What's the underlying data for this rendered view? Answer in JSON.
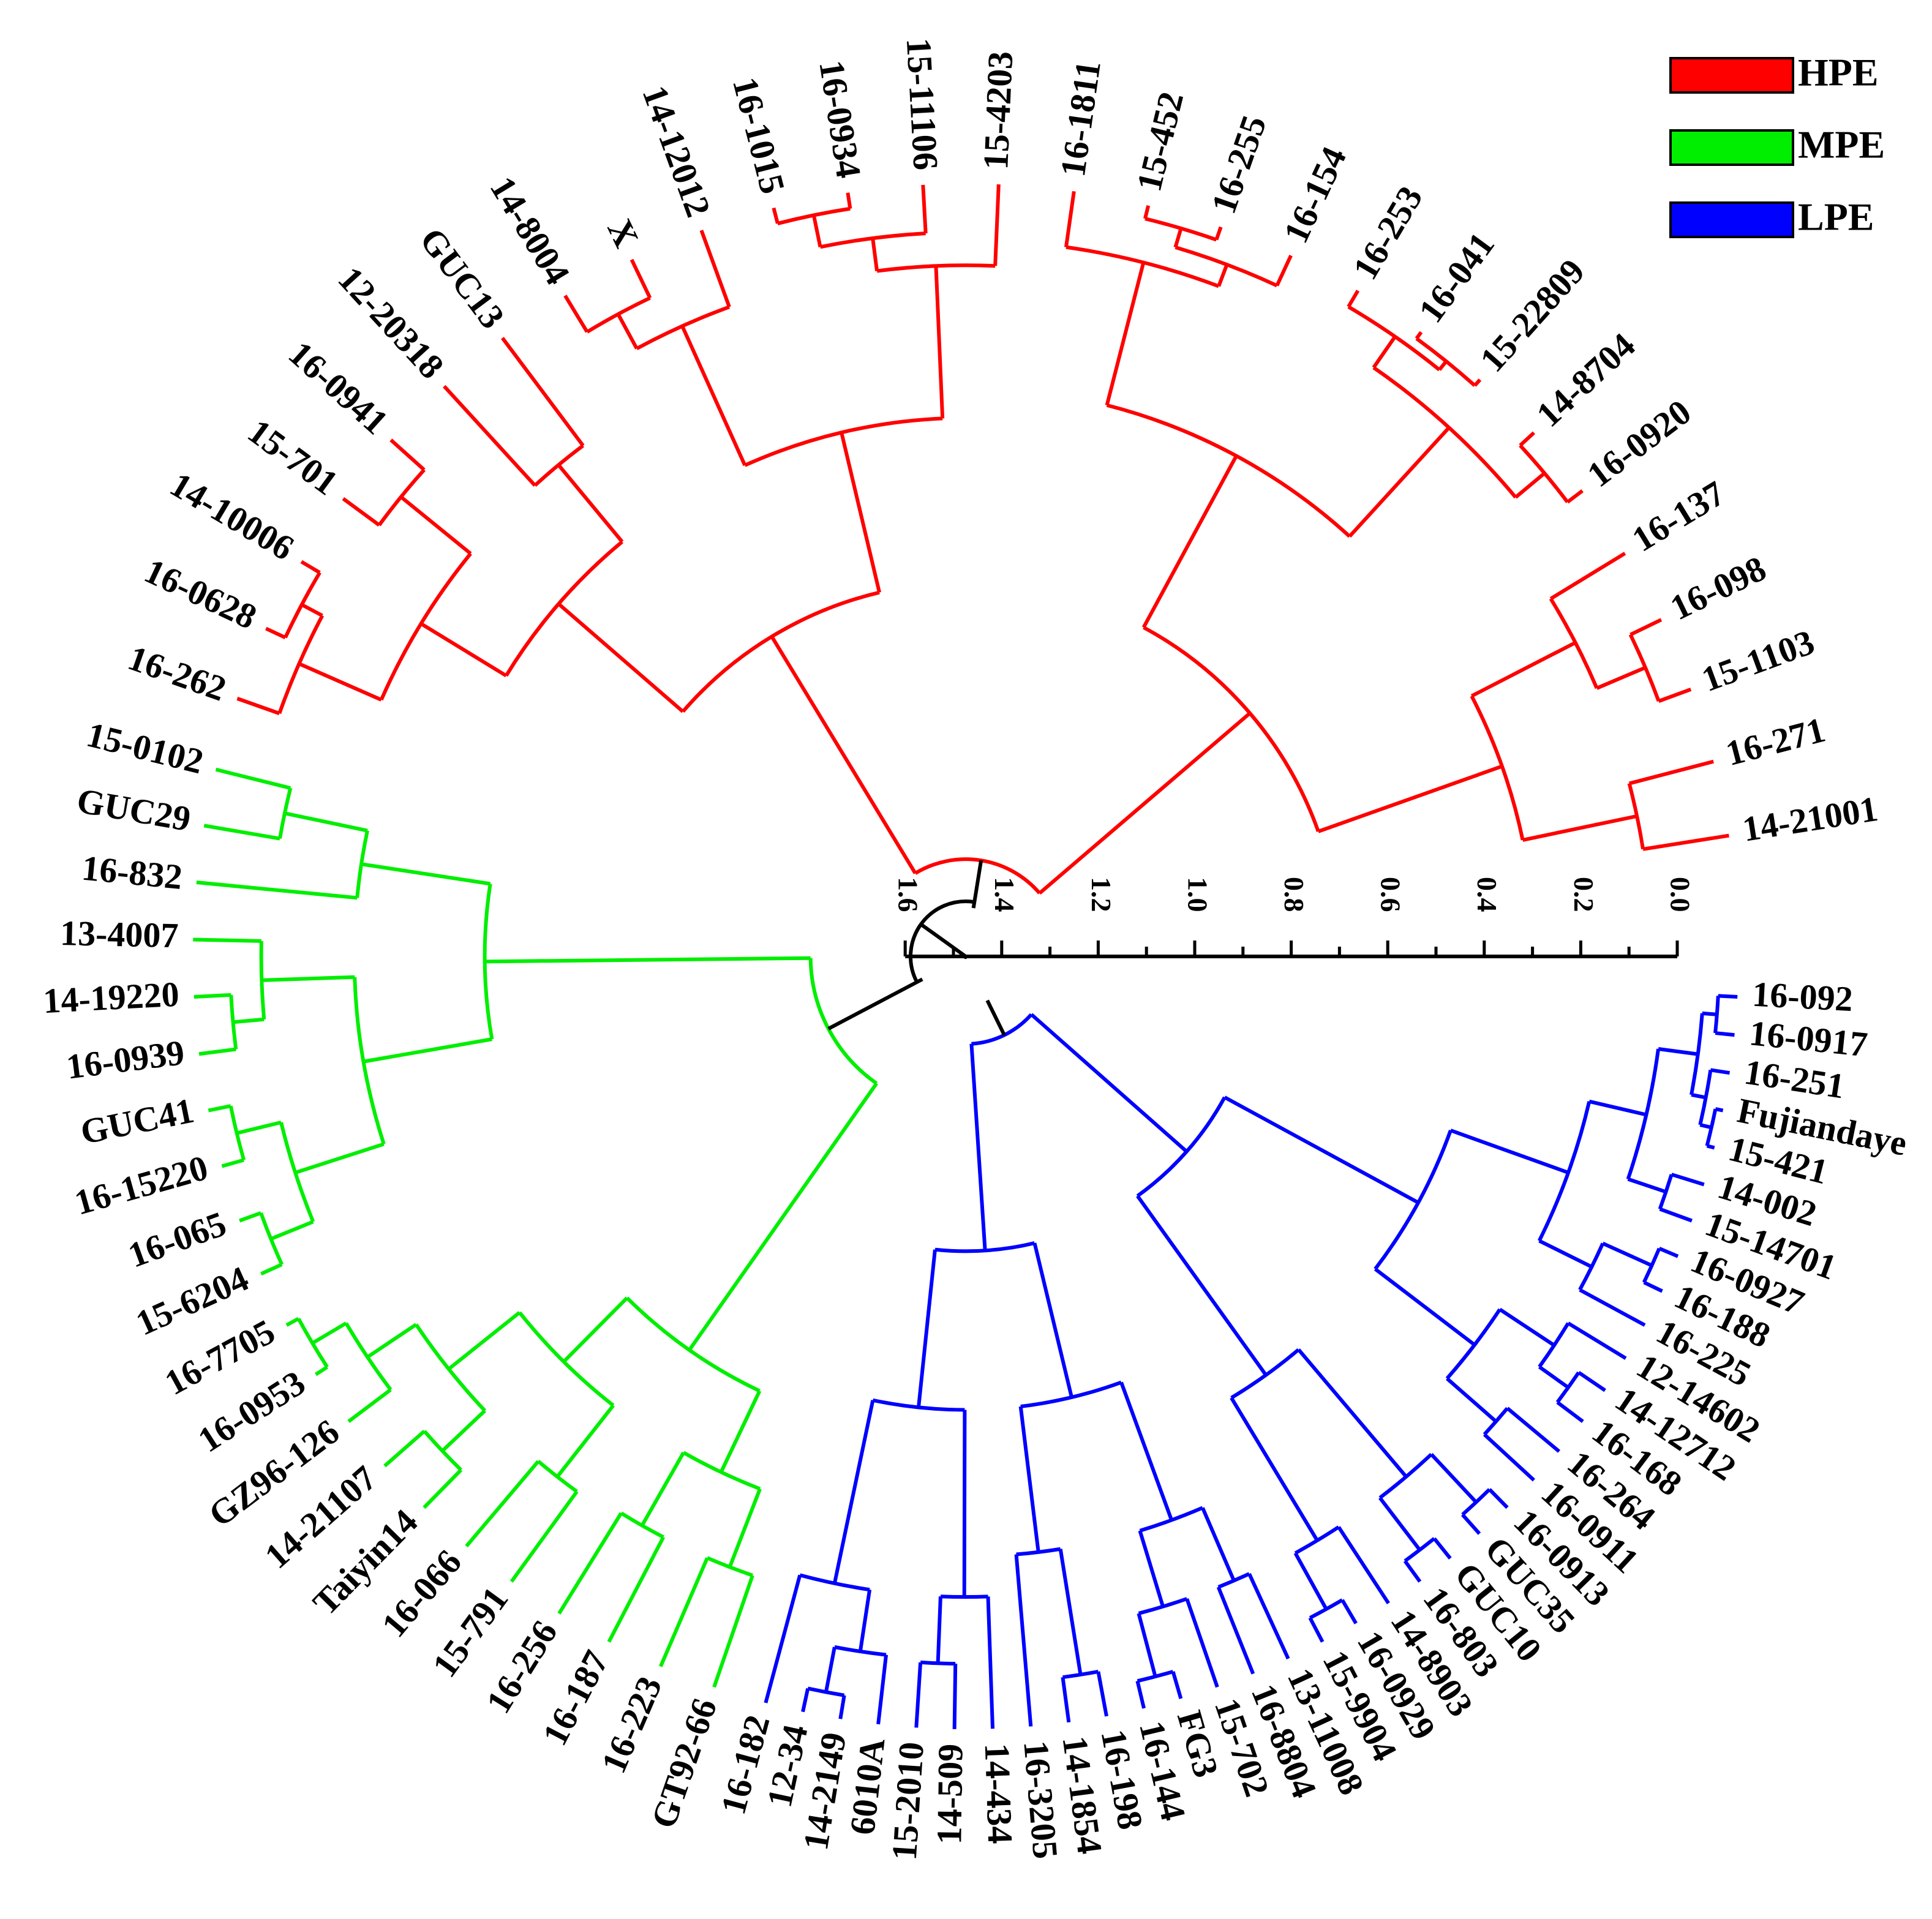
{
  "legend": [
    {
      "label": "HPE",
      "color": "#ff0000"
    },
    {
      "label": "MPE",
      "color": "#00ee00"
    },
    {
      "label": "LPE",
      "color": "#0000ff"
    }
  ],
  "trunk_color": "#000000",
  "axis": {
    "ticks": [
      "0.0",
      "0.2",
      "0.4",
      "0.6",
      "0.8",
      "1.0",
      "1.2",
      "1.4",
      "1.6"
    ],
    "range": [
      0,
      1.6
    ]
  },
  "groups": [
    {
      "name": "HPE",
      "color": "#ff0000",
      "leaves": [
        "14-21001",
        "16-271",
        "15-1103",
        "16-098",
        "16-137",
        "16-0920",
        "14-8704",
        "15-22809",
        "16-041",
        "16-253",
        "16-154",
        "16-255",
        "15-452",
        "16-1811",
        "15-4203",
        "15-11106",
        "16-0934",
        "16-1015",
        "14-12012",
        "X",
        "14-8004",
        "GUC13",
        "12-20318",
        "16-0941",
        "15-701",
        "14-10006",
        "16-0628",
        "16-262"
      ]
    },
    {
      "name": "MPE",
      "color": "#00ee00",
      "leaves": [
        "15-0102",
        "GUC29",
        "16-832",
        "13-4007",
        "14-19220",
        "16-0939",
        "GUC41",
        "16-15220",
        "16-065",
        "15-6204",
        "16-7705",
        "16-0953",
        "GZ96-126",
        "14-21107",
        "Taiyin14",
        "16-066",
        "15-791",
        "16-256",
        "16-187",
        "16-223",
        "GT92-66"
      ]
    },
    {
      "name": "LPE",
      "color": "#0000ff",
      "leaves": [
        "16-182",
        "12-34",
        "14-2149",
        "6010A",
        "15-2010",
        "14-509",
        "14-434",
        "16-3205",
        "14-1854",
        "16-198",
        "16-144",
        "FG3",
        "15-702",
        "16-8804",
        "13-11008",
        "15-9904",
        "16-0929",
        "14-8903",
        "16-803",
        "GUC10",
        "GUC35",
        "16-0913",
        "16-0911",
        "16-264",
        "16-168",
        "14-12712",
        "12-14602",
        "16-225",
        "16-188",
        "16-0927",
        "15-14701",
        "14-002",
        "15-421",
        "Fujiandaye",
        "16-251",
        "16-0917",
        "16-092"
      ]
    }
  ],
  "heights": {
    "root": 1.5,
    "HPE": 1.4,
    "MPE": 1.28,
    "LPE": 1.42
  }
}
